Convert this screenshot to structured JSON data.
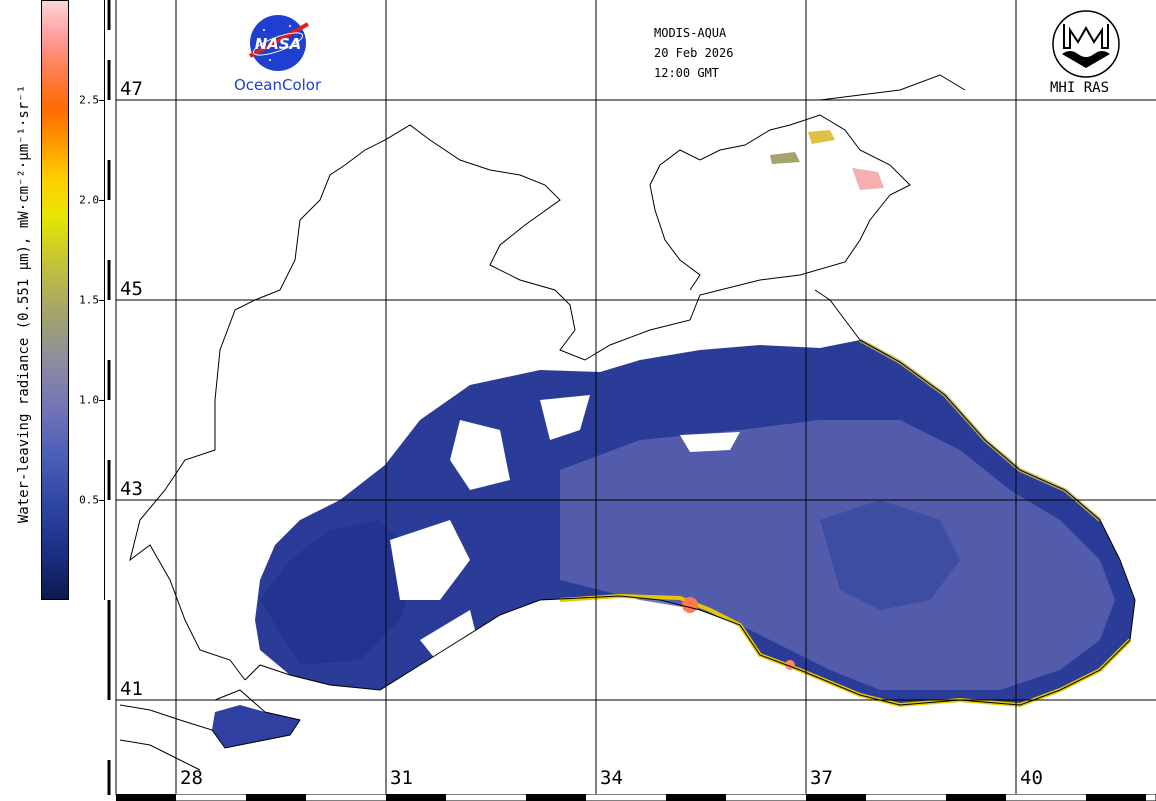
{
  "header": {
    "sensor": "MODIS-AQUA",
    "date": "20 Feb 2026",
    "time": "12:00 GMT"
  },
  "logos": {
    "nasa_caption": "OceanColor",
    "nasa_wordmark": "NASA",
    "mhi_caption": "MHI RAS"
  },
  "colorbar": {
    "label": "Water-leaving radiance (0.551 µm), mW·cm⁻²·µm⁻¹·sr⁻¹",
    "ticks": [
      "2.5",
      "2.0",
      "1.5",
      "1.0",
      "0.5"
    ],
    "tick_values": [
      2.5,
      2.0,
      1.5,
      1.0,
      0.5
    ],
    "range": [
      0,
      3.0
    ]
  },
  "map": {
    "lat_labels": [
      "47",
      "45",
      "43",
      "41"
    ],
    "lon_labels": [
      "28",
      "31",
      "34",
      "37",
      "40"
    ],
    "colors": {
      "land": "#ffffff",
      "coastline": "#000000",
      "water_low": "#1c2f86",
      "water_mid": "#5a64b0",
      "coastal_high": "#e6c800",
      "coastal_peak": "#ff6a50"
    }
  }
}
